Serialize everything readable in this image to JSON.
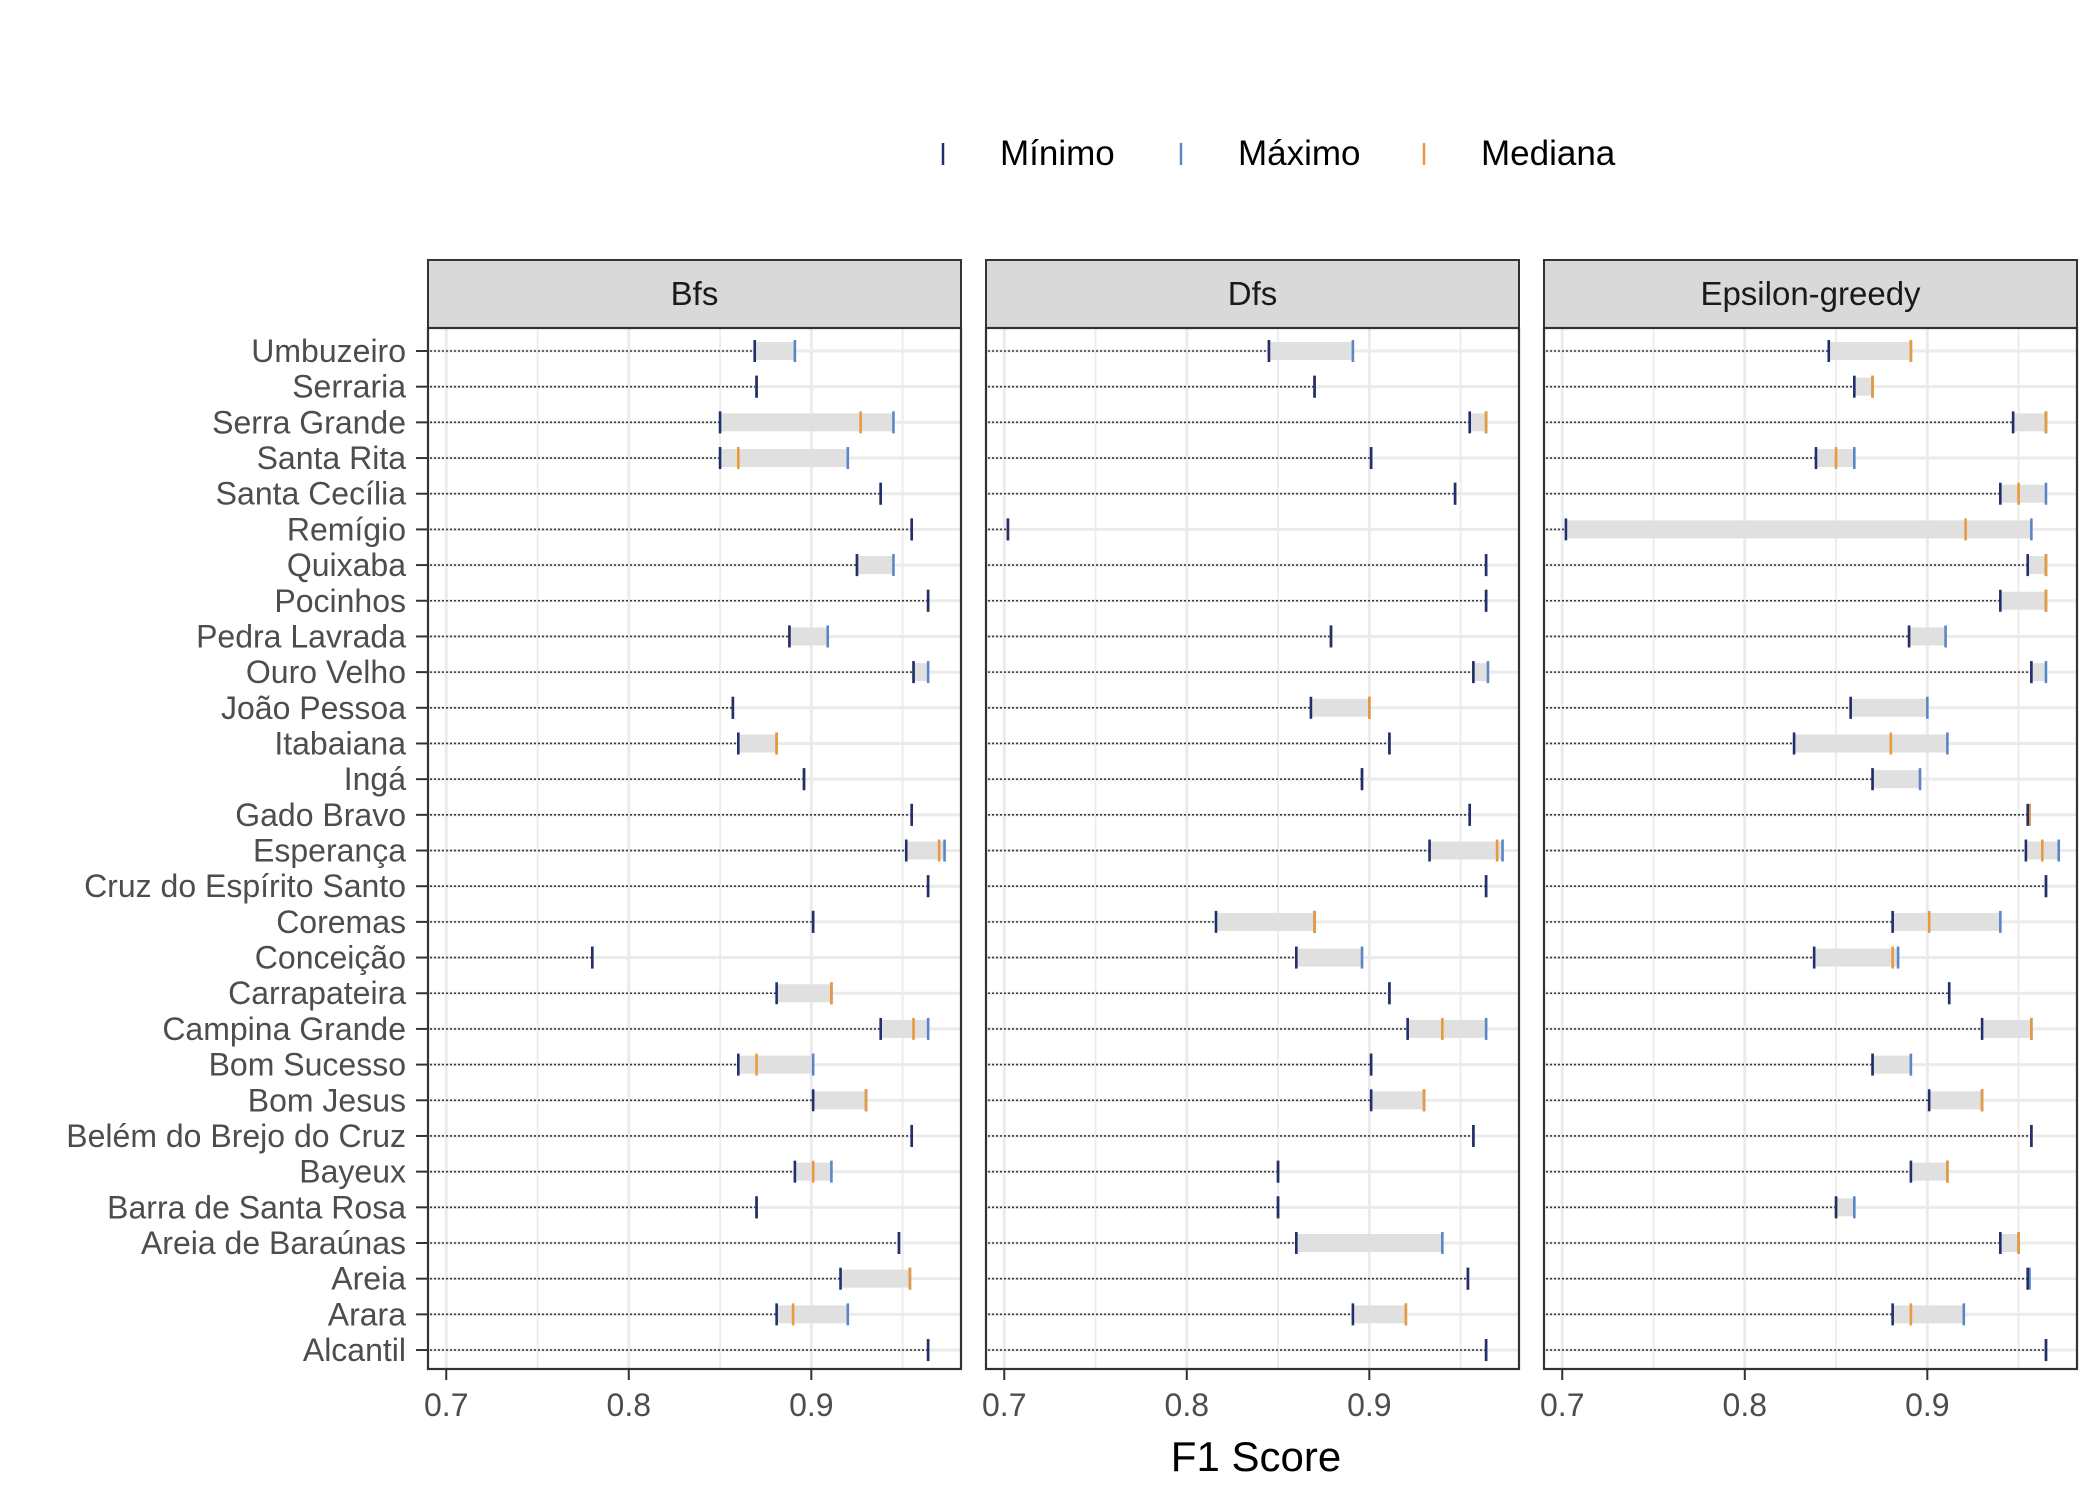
{
  "chart_data": {
    "type": "range-dot",
    "xlabel": "F1 Score",
    "xlim": [
      0.69,
      0.982
    ],
    "x_ticks": [
      0.7,
      0.8,
      0.9
    ],
    "x_tick_labels": [
      "0.7",
      "0.8",
      "0.9"
    ],
    "grid": true,
    "legend_position": "top",
    "legend": [
      {
        "key": "min",
        "label": "Mínimo",
        "color": "#1f2f6f"
      },
      {
        "key": "max",
        "label": "Máximo",
        "color": "#5b86c6"
      },
      {
        "key": "median",
        "label": "Mediana",
        "color": "#e89a3c"
      }
    ],
    "range_color": "#e0e0e0",
    "categories": [
      "Umbuzeiro",
      "Serraria",
      "Serra Grande",
      "Santa Rita",
      "Santa Cecília",
      "Remígio",
      "Quixaba",
      "Pocinhos",
      "Pedra Lavrada",
      "Ouro Velho",
      "João Pessoa",
      "Itabaiana",
      "Ingá",
      "Gado Bravo",
      "Esperança",
      "Cruz do Espírito Santo",
      "Coremas",
      "Conceição",
      "Carrapateira",
      "Campina Grande",
      "Bom Sucesso",
      "Bom Jesus",
      "Belém do Brejo do Cruz",
      "Bayeux",
      "Barra de Santa Rosa",
      "Areia de Baraúnas",
      "Areia",
      "Arara",
      "Alcantil"
    ],
    "panels": [
      {
        "name": "Bfs",
        "min": [
          0.869,
          0.87,
          0.85,
          0.85,
          0.938,
          0.955,
          0.925,
          0.964,
          0.888,
          0.956,
          0.857,
          0.86,
          0.896,
          0.955,
          0.952,
          0.964,
          0.901,
          0.78,
          0.881,
          0.938,
          0.86,
          0.901,
          0.955,
          0.891,
          0.87,
          0.948,
          0.916,
          0.881,
          0.964
        ],
        "max": [
          0.891,
          0.87,
          0.945,
          0.92,
          0.938,
          0.955,
          0.945,
          0.964,
          0.909,
          0.964,
          0.857,
          0.881,
          0.896,
          0.955,
          0.973,
          0.964,
          0.901,
          0.78,
          0.911,
          0.964,
          0.901,
          0.93,
          0.955,
          0.911,
          0.87,
          0.948,
          0.954,
          0.92,
          0.964
        ],
        "median": [
          0.869,
          0.87,
          0.927,
          0.86,
          0.938,
          0.955,
          0.925,
          0.964,
          0.888,
          0.956,
          0.857,
          0.881,
          0.896,
          0.955,
          0.97,
          0.964,
          0.901,
          0.78,
          0.911,
          0.956,
          0.87,
          0.93,
          0.955,
          0.901,
          0.87,
          0.948,
          0.954,
          0.89,
          0.964
        ]
      },
      {
        "name": "Dfs",
        "min": [
          0.845,
          0.87,
          0.955,
          0.901,
          0.947,
          0.702,
          0.964,
          0.964,
          0.879,
          0.957,
          0.868,
          0.911,
          0.896,
          0.955,
          0.933,
          0.964,
          0.816,
          0.86,
          0.911,
          0.921,
          0.901,
          0.901,
          0.957,
          0.85,
          0.85,
          0.86,
          0.954,
          0.891,
          0.964
        ],
        "max": [
          0.891,
          0.87,
          0.964,
          0.901,
          0.947,
          0.702,
          0.964,
          0.964,
          0.879,
          0.965,
          0.9,
          0.911,
          0.896,
          0.955,
          0.973,
          0.964,
          0.87,
          0.896,
          0.911,
          0.964,
          0.901,
          0.93,
          0.957,
          0.85,
          0.85,
          0.94,
          0.954,
          0.92,
          0.964
        ],
        "median": [
          0.845,
          0.87,
          0.964,
          0.901,
          0.947,
          0.702,
          0.964,
          0.964,
          0.879,
          0.957,
          0.9,
          0.911,
          0.896,
          0.955,
          0.97,
          0.964,
          0.87,
          0.86,
          0.911,
          0.94,
          0.901,
          0.93,
          0.957,
          0.85,
          0.85,
          0.86,
          0.954,
          0.92,
          0.964
        ]
      },
      {
        "name": "Epsilon-greedy",
        "min": [
          0.846,
          0.86,
          0.947,
          0.839,
          0.94,
          0.702,
          0.955,
          0.94,
          0.89,
          0.957,
          0.858,
          0.827,
          0.87,
          0.955,
          0.954,
          0.965,
          0.881,
          0.838,
          0.912,
          0.93,
          0.87,
          0.901,
          0.957,
          0.891,
          0.85,
          0.94,
          0.955,
          0.881,
          0.965
        ],
        "max": [
          0.891,
          0.87,
          0.965,
          0.86,
          0.965,
          0.957,
          0.965,
          0.965,
          0.91,
          0.965,
          0.9,
          0.911,
          0.896,
          0.956,
          0.972,
          0.965,
          0.94,
          0.884,
          0.912,
          0.957,
          0.891,
          0.93,
          0.957,
          0.911,
          0.86,
          0.95,
          0.956,
          0.92,
          0.965
        ],
        "median": [
          0.891,
          0.87,
          0.965,
          0.85,
          0.95,
          0.921,
          0.965,
          0.965,
          0.89,
          0.957,
          0.858,
          0.88,
          0.87,
          0.956,
          0.963,
          0.965,
          0.901,
          0.881,
          0.912,
          0.957,
          0.87,
          0.93,
          0.957,
          0.911,
          0.85,
          0.95,
          0.955,
          0.891,
          0.965
        ]
      }
    ]
  }
}
